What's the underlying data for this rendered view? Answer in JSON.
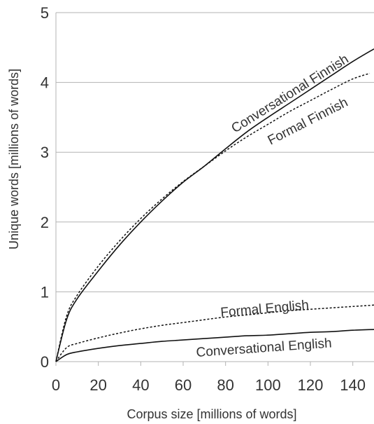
{
  "chart_data": {
    "type": "line",
    "title": "",
    "xlabel": "Corpus size [millions of words]",
    "ylabel": "Unique words [millions of words]",
    "xlim": [
      0,
      150
    ],
    "ylim": [
      0,
      5
    ],
    "xticks": [
      0,
      20,
      40,
      60,
      80,
      100,
      120,
      140
    ],
    "yticks": [
      0,
      1,
      2,
      3,
      4,
      5
    ],
    "grid": "horizontal",
    "legend": "none",
    "series": [
      {
        "name": "Conversational Finnish",
        "style": "solid",
        "x": [
          0,
          5,
          10,
          20,
          30,
          40,
          50,
          60,
          70,
          80,
          90,
          100,
          110,
          120,
          130,
          140,
          150
        ],
        "y": [
          0,
          0.6,
          0.9,
          1.3,
          1.67,
          2.0,
          2.3,
          2.57,
          2.8,
          3.05,
          3.29,
          3.5,
          3.7,
          3.9,
          4.1,
          4.3,
          4.48
        ]
      },
      {
        "name": "Formal Finnish",
        "style": "dotted",
        "x": [
          0,
          5,
          10,
          20,
          30,
          40,
          50,
          60,
          70,
          80,
          90,
          100,
          110,
          120,
          130,
          140,
          148
        ],
        "y": [
          0,
          0.65,
          0.95,
          1.37,
          1.73,
          2.05,
          2.33,
          2.58,
          2.8,
          3.02,
          3.22,
          3.4,
          3.58,
          3.74,
          3.9,
          4.05,
          4.13
        ]
      },
      {
        "name": "Formal English",
        "style": "dotted",
        "x": [
          0,
          5,
          10,
          20,
          30,
          40,
          50,
          60,
          70,
          80,
          90,
          100,
          110,
          120,
          130,
          140,
          150
        ],
        "y": [
          0,
          0.2,
          0.26,
          0.34,
          0.41,
          0.47,
          0.52,
          0.56,
          0.6,
          0.64,
          0.67,
          0.7,
          0.73,
          0.75,
          0.77,
          0.79,
          0.81
        ]
      },
      {
        "name": "Conversational English",
        "style": "solid",
        "x": [
          0,
          5,
          10,
          20,
          30,
          40,
          50,
          60,
          70,
          80,
          90,
          100,
          110,
          120,
          130,
          140,
          150
        ],
        "y": [
          0,
          0.1,
          0.14,
          0.19,
          0.23,
          0.26,
          0.29,
          0.31,
          0.33,
          0.35,
          0.37,
          0.38,
          0.4,
          0.42,
          0.43,
          0.45,
          0.46
        ]
      }
    ]
  }
}
